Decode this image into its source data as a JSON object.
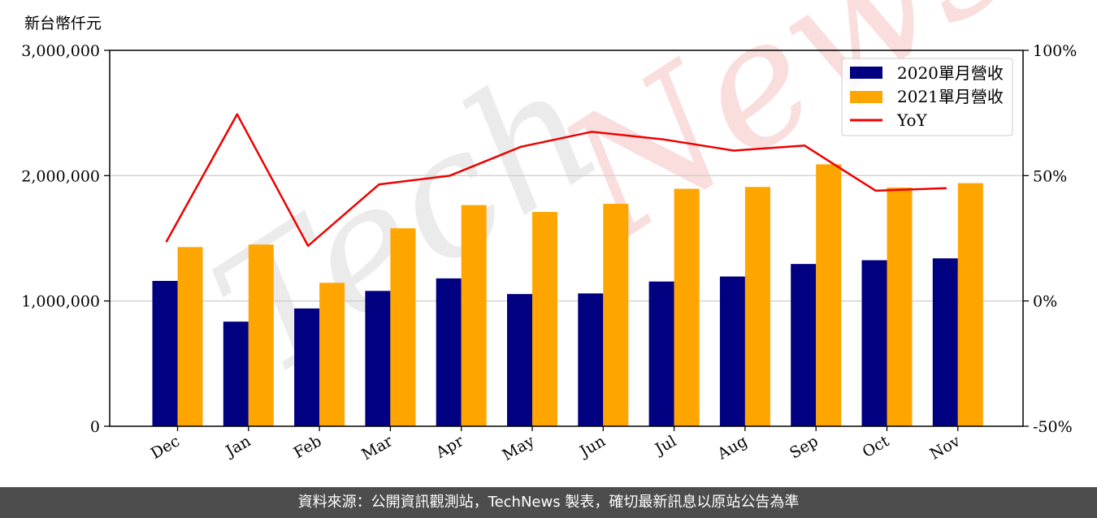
{
  "unit_label": "新台幣仟元",
  "footer_text": "資料來源：公開資訊觀測站，TechNews 製表，確切最新訊息以原站公告為準",
  "watermark": {
    "part1": "Tech",
    "part2": "News"
  },
  "colors": {
    "series2020": "#000080",
    "series2021": "#FFA500",
    "yoy": "#EE0000",
    "grid": "#d0d0d0"
  },
  "chart_data": {
    "type": "bar",
    "categories": [
      "Dec",
      "Jan",
      "Feb",
      "Mar",
      "Apr",
      "May",
      "Jun",
      "Jul",
      "Aug",
      "Sep",
      "Oct",
      "Nov"
    ],
    "series": [
      {
        "name": "2020單月營收",
        "axis": "left",
        "type": "bar",
        "values": [
          1160000,
          835000,
          940000,
          1080000,
          1180000,
          1055000,
          1060000,
          1155000,
          1195000,
          1295000,
          1325000,
          1340000
        ]
      },
      {
        "name": "2021單月營收",
        "axis": "left",
        "type": "bar",
        "values": [
          1430000,
          1450000,
          1145000,
          1580000,
          1765000,
          1710000,
          1775000,
          1895000,
          1910000,
          2090000,
          1905000,
          1940000
        ]
      },
      {
        "name": "YoY",
        "axis": "right",
        "type": "line",
        "values": [
          23.5,
          74.5,
          22,
          46.5,
          50,
          61.5,
          67.5,
          64.5,
          60,
          62,
          44,
          45
        ]
      }
    ],
    "ylim": [
      0,
      3000000
    ],
    "yticks": [
      "0",
      "1,000,000",
      "2,000,000",
      "3,000,000"
    ],
    "y2lim": [
      -50,
      100
    ],
    "y2ticks": [
      "-50%",
      "0%",
      "50%",
      "100%"
    ],
    "grid": true,
    "legend": "top-right"
  }
}
